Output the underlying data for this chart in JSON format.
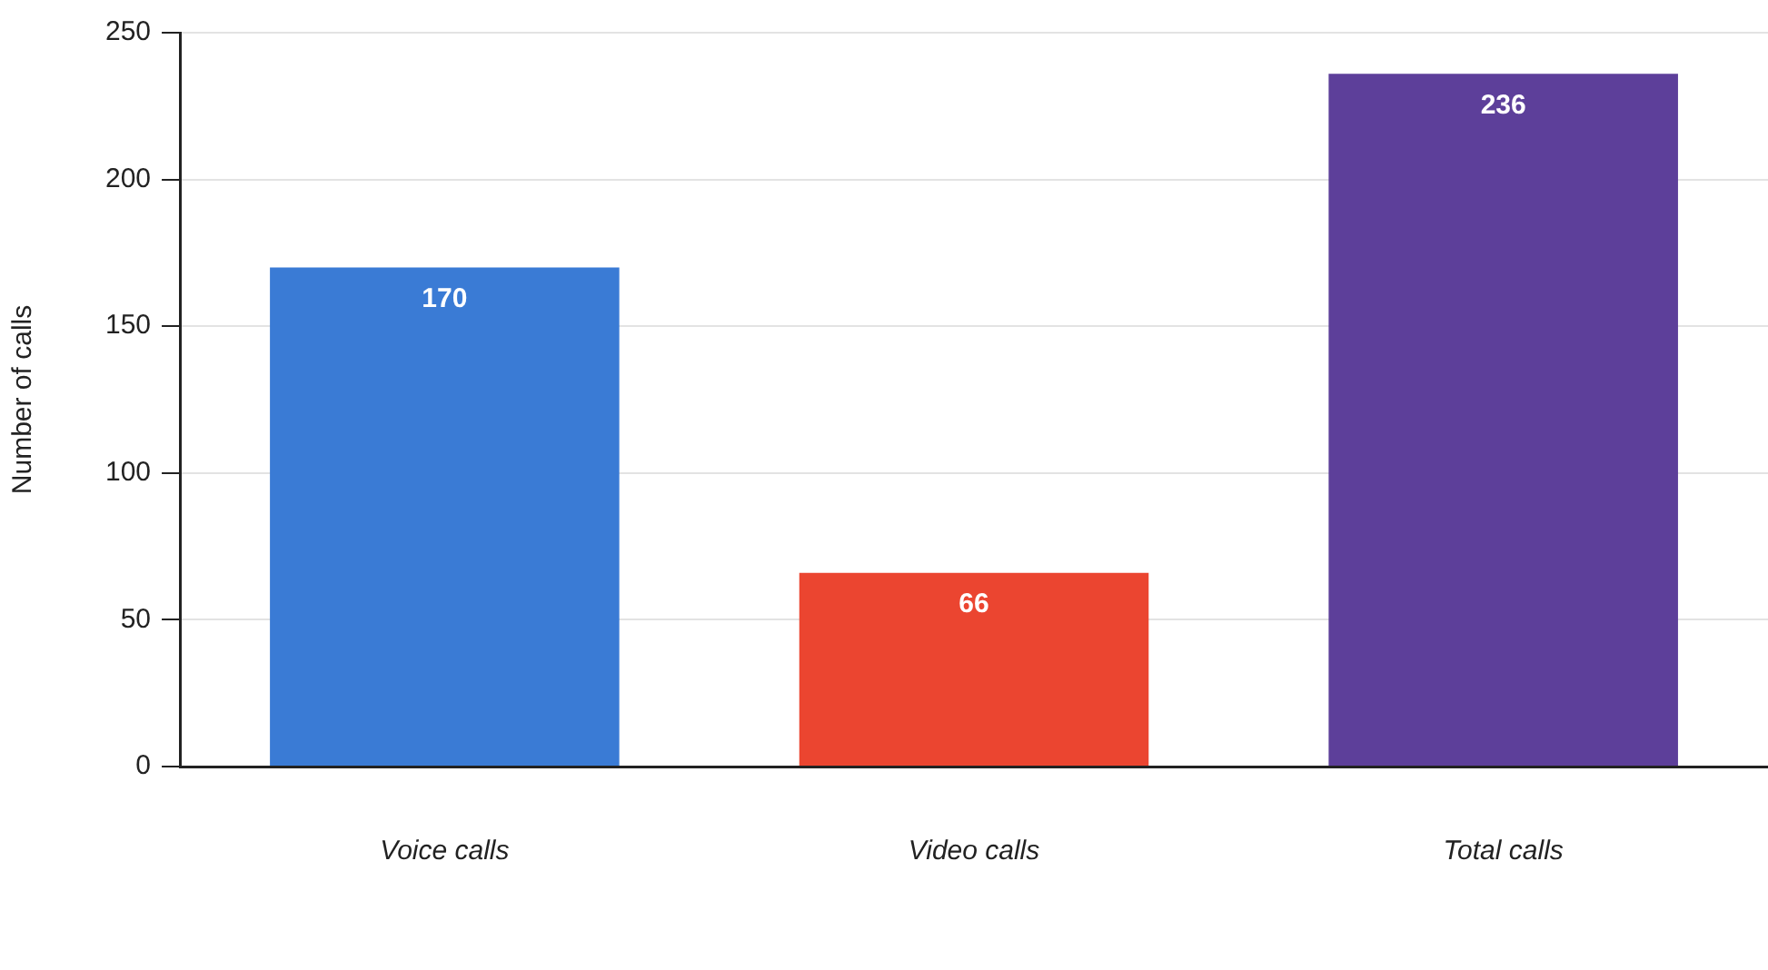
{
  "chart_data": {
    "type": "bar",
    "ylabel": "Number of calls",
    "categories": [
      "Voice calls",
      "Video calls",
      "Total calls"
    ],
    "values": [
      170,
      66,
      236
    ],
    "colors": [
      "#3a7bd5",
      "#eb4530",
      "#5d3f9a"
    ],
    "ylim": [
      0,
      250
    ],
    "yticks": [
      0,
      50,
      100,
      150,
      200,
      250
    ],
    "grid": "y",
    "data_labels": true,
    "legend": false
  }
}
